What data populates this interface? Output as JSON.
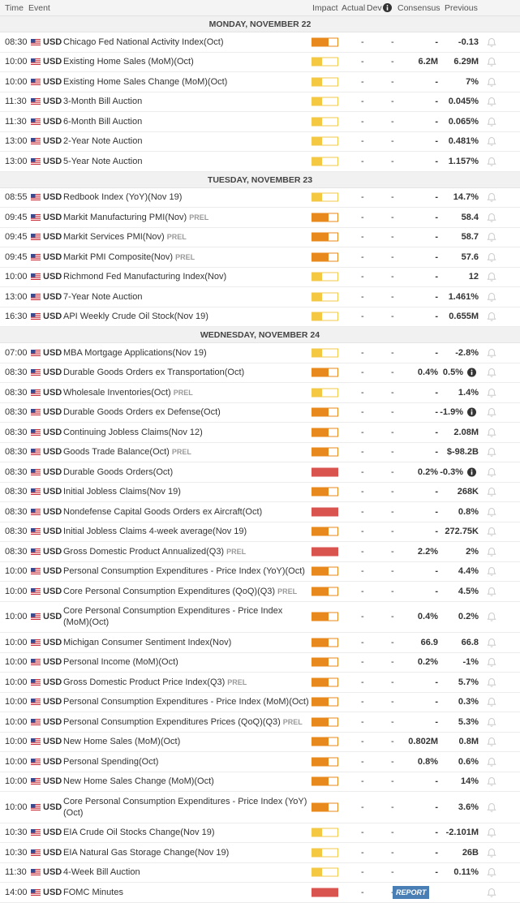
{
  "header": {
    "time": "Time",
    "event": "Event",
    "impact": "Impact",
    "actual": "Actual",
    "dev": "Dev",
    "consensus": "Consensus",
    "previous": "Previous"
  },
  "days": [
    {
      "title": "MONDAY, NOVEMBER 22",
      "rows": [
        {
          "time": "08:30",
          "cur": "USD",
          "event": "Chicago Fed National Activity Index",
          "period": "(Oct)",
          "impact": "medium",
          "actual": "-",
          "dev": "-",
          "cons": "-",
          "prev": "-0.13"
        },
        {
          "time": "10:00",
          "cur": "USD",
          "event": "Existing Home Sales (MoM)",
          "period": "(Oct)",
          "impact": "low",
          "actual": "-",
          "dev": "-",
          "cons": "6.2M",
          "prev": "6.29M"
        },
        {
          "time": "10:00",
          "cur": "USD",
          "event": "Existing Home Sales Change (MoM)",
          "period": "(Oct)",
          "impact": "low",
          "actual": "-",
          "dev": "-",
          "cons": "-",
          "prev": "7%"
        },
        {
          "time": "11:30",
          "cur": "USD",
          "event": "3-Month Bill Auction",
          "impact": "low",
          "actual": "-",
          "dev": "-",
          "cons": "-",
          "prev": "0.045%"
        },
        {
          "time": "11:30",
          "cur": "USD",
          "event": "6-Month Bill Auction",
          "impact": "low",
          "actual": "-",
          "dev": "-",
          "cons": "-",
          "prev": "0.065%"
        },
        {
          "time": "13:00",
          "cur": "USD",
          "event": "2-Year Note Auction",
          "impact": "low",
          "actual": "-",
          "dev": "-",
          "cons": "-",
          "prev": "0.481%"
        },
        {
          "time": "13:00",
          "cur": "USD",
          "event": "5-Year Note Auction",
          "impact": "low",
          "actual": "-",
          "dev": "-",
          "cons": "-",
          "prev": "1.157%"
        }
      ]
    },
    {
      "title": "TUESDAY, NOVEMBER 23",
      "rows": [
        {
          "time": "08:55",
          "cur": "USD",
          "event": "Redbook Index (YoY)",
          "period": "(Nov 19)",
          "impact": "low",
          "actual": "-",
          "dev": "-",
          "cons": "-",
          "prev": "14.7%"
        },
        {
          "time": "09:45",
          "cur": "USD",
          "event": "Markit Manufacturing PMI",
          "period": "(Nov)",
          "tag": "PREL",
          "impact": "medium",
          "actual": "-",
          "dev": "-",
          "cons": "-",
          "prev": "58.4"
        },
        {
          "time": "09:45",
          "cur": "USD",
          "event": "Markit Services PMI",
          "period": "(Nov)",
          "tag": "PREL",
          "impact": "medium",
          "actual": "-",
          "dev": "-",
          "cons": "-",
          "prev": "58.7"
        },
        {
          "time": "09:45",
          "cur": "USD",
          "event": "Markit PMI Composite",
          "period": "(Nov)",
          "tag": "PREL",
          "impact": "medium",
          "actual": "-",
          "dev": "-",
          "cons": "-",
          "prev": "57.6"
        },
        {
          "time": "10:00",
          "cur": "USD",
          "event": "Richmond Fed Manufacturing Index",
          "period": "(Nov)",
          "impact": "low",
          "actual": "-",
          "dev": "-",
          "cons": "-",
          "prev": "12"
        },
        {
          "time": "13:00",
          "cur": "USD",
          "event": "7-Year Note Auction",
          "impact": "low",
          "actual": "-",
          "dev": "-",
          "cons": "-",
          "prev": "1.461%"
        },
        {
          "time": "16:30",
          "cur": "USD",
          "event": "API Weekly Crude Oil Stock",
          "period": "(Nov 19)",
          "impact": "low",
          "actual": "-",
          "dev": "-",
          "cons": "-",
          "prev": "0.655M"
        }
      ]
    },
    {
      "title": "WEDNESDAY, NOVEMBER 24",
      "rows": [
        {
          "time": "07:00",
          "cur": "USD",
          "event": "MBA Mortgage Applications",
          "period": "(Nov 19)",
          "impact": "low",
          "actual": "-",
          "dev": "-",
          "cons": "-",
          "prev": "-2.8%"
        },
        {
          "time": "08:30",
          "cur": "USD",
          "event": "Durable Goods Orders ex Transportation",
          "period": "(Oct)",
          "impact": "medium",
          "actual": "-",
          "dev": "-",
          "cons": "0.4%",
          "prev": "0.5%",
          "info": true
        },
        {
          "time": "08:30",
          "cur": "USD",
          "event": "Wholesale Inventories",
          "period": "(Oct)",
          "tag": "PREL",
          "impact": "low",
          "actual": "-",
          "dev": "-",
          "cons": "-",
          "prev": "1.4%"
        },
        {
          "time": "08:30",
          "cur": "USD",
          "event": "Durable Goods Orders ex Defense",
          "period": "(Oct)",
          "impact": "medium",
          "actual": "-",
          "dev": "-",
          "cons": "-",
          "prev": "-1.9%",
          "info": true
        },
        {
          "time": "08:30",
          "cur": "USD",
          "event": "Continuing Jobless Claims",
          "period": "(Nov 12)",
          "impact": "medium",
          "actual": "-",
          "dev": "-",
          "cons": "-",
          "prev": "2.08M"
        },
        {
          "time": "08:30",
          "cur": "USD",
          "event": "Goods Trade Balance",
          "period": "(Oct)",
          "tag": "PREL",
          "impact": "medium",
          "actual": "-",
          "dev": "-",
          "cons": "-",
          "prev": "$-98.2B"
        },
        {
          "time": "08:30",
          "cur": "USD",
          "event": "Durable Goods Orders",
          "period": "(Oct)",
          "impact": "high",
          "actual": "-",
          "dev": "-",
          "cons": "0.2%",
          "prev": "-0.3%",
          "info": true
        },
        {
          "time": "08:30",
          "cur": "USD",
          "event": "Initial Jobless Claims",
          "period": "(Nov 19)",
          "impact": "medium",
          "actual": "-",
          "dev": "-",
          "cons": "-",
          "prev": "268K"
        },
        {
          "time": "08:30",
          "cur": "USD",
          "event": "Nondefense Capital Goods Orders ex Aircraft",
          "period": "(Oct)",
          "impact": "high",
          "actual": "-",
          "dev": "-",
          "cons": "-",
          "prev": "0.8%"
        },
        {
          "time": "08:30",
          "cur": "USD",
          "event": "Initial Jobless Claims 4-week average",
          "period": "(Nov 19)",
          "impact": "medium",
          "actual": "-",
          "dev": "-",
          "cons": "-",
          "prev": "272.75K"
        },
        {
          "time": "08:30",
          "cur": "USD",
          "event": "Gross Domestic Product Annualized",
          "period": "(Q3)",
          "tag": "PREL",
          "impact": "high",
          "actual": "-",
          "dev": "-",
          "cons": "2.2%",
          "prev": "2%"
        },
        {
          "time": "10:00",
          "cur": "USD",
          "event": "Personal Consumption Expenditures - Price Index (YoY)",
          "period": "(Oct)",
          "impact": "medium",
          "actual": "-",
          "dev": "-",
          "cons": "-",
          "prev": "4.4%"
        },
        {
          "time": "10:00",
          "cur": "USD",
          "event": "Core Personal Consumption Expenditures (QoQ)",
          "period": "(Q3)",
          "tag": "PREL",
          "impact": "medium",
          "actual": "-",
          "dev": "-",
          "cons": "-",
          "prev": "4.5%"
        },
        {
          "time": "10:00",
          "cur": "USD",
          "event": "Core Personal Consumption Expenditures - Price Index (MoM)",
          "period": "(Oct)",
          "impact": "medium",
          "actual": "-",
          "dev": "-",
          "cons": "0.4%",
          "prev": "0.2%"
        },
        {
          "time": "10:00",
          "cur": "USD",
          "event": "Michigan Consumer Sentiment Index",
          "period": "(Nov)",
          "impact": "medium",
          "actual": "-",
          "dev": "-",
          "cons": "66.9",
          "prev": "66.8"
        },
        {
          "time": "10:00",
          "cur": "USD",
          "event": "Personal Income (MoM)",
          "period": "(Oct)",
          "impact": "medium",
          "actual": "-",
          "dev": "-",
          "cons": "0.2%",
          "prev": "-1%"
        },
        {
          "time": "10:00",
          "cur": "USD",
          "event": "Gross Domestic Product Price Index",
          "period": "(Q3)",
          "tag": "PREL",
          "impact": "medium",
          "actual": "-",
          "dev": "-",
          "cons": "-",
          "prev": "5.7%"
        },
        {
          "time": "10:00",
          "cur": "USD",
          "event": "Personal Consumption Expenditures - Price Index (MoM)",
          "period": "(Oct)",
          "impact": "medium",
          "actual": "-",
          "dev": "-",
          "cons": "-",
          "prev": "0.3%"
        },
        {
          "time": "10:00",
          "cur": "USD",
          "event": "Personal Consumption Expenditures Prices (QoQ)",
          "period": "(Q3)",
          "tag": "PREL",
          "impact": "medium",
          "actual": "-",
          "dev": "-",
          "cons": "-",
          "prev": "5.3%"
        },
        {
          "time": "10:00",
          "cur": "USD",
          "event": "New Home Sales (MoM)",
          "period": "(Oct)",
          "impact": "medium",
          "actual": "-",
          "dev": "-",
          "cons": "0.802M",
          "prev": "0.8M"
        },
        {
          "time": "10:00",
          "cur": "USD",
          "event": "Personal Spending",
          "period": "(Oct)",
          "impact": "medium",
          "actual": "-",
          "dev": "-",
          "cons": "0.8%",
          "prev": "0.6%"
        },
        {
          "time": "10:00",
          "cur": "USD",
          "event": "New Home Sales Change (MoM)",
          "period": "(Oct)",
          "impact": "medium",
          "actual": "-",
          "dev": "-",
          "cons": "-",
          "prev": "14%"
        },
        {
          "time": "10:00",
          "cur": "USD",
          "event": "Core Personal Consumption Expenditures - Price Index (YoY)",
          "period": "(Oct)",
          "impact": "medium",
          "actual": "-",
          "dev": "-",
          "cons": "-",
          "prev": "3.6%"
        },
        {
          "time": "10:30",
          "cur": "USD",
          "event": "EIA Crude Oil Stocks Change",
          "period": "(Nov 19)",
          "impact": "low",
          "actual": "-",
          "dev": "-",
          "cons": "-",
          "prev": "-2.101M"
        },
        {
          "time": "10:30",
          "cur": "USD",
          "event": "EIA Natural Gas Storage Change",
          "period": "(Nov 19)",
          "impact": "low",
          "actual": "-",
          "dev": "-",
          "cons": "-",
          "prev": "26B"
        },
        {
          "time": "11:30",
          "cur": "USD",
          "event": "4-Week Bill Auction",
          "impact": "low",
          "actual": "-",
          "dev": "-",
          "cons": "-",
          "prev": "0.11%"
        },
        {
          "time": "14:00",
          "cur": "USD",
          "event": "FOMC Minutes",
          "impact": "high",
          "actual": "-",
          "dev": "-",
          "report": "REPORT"
        }
      ]
    }
  ]
}
